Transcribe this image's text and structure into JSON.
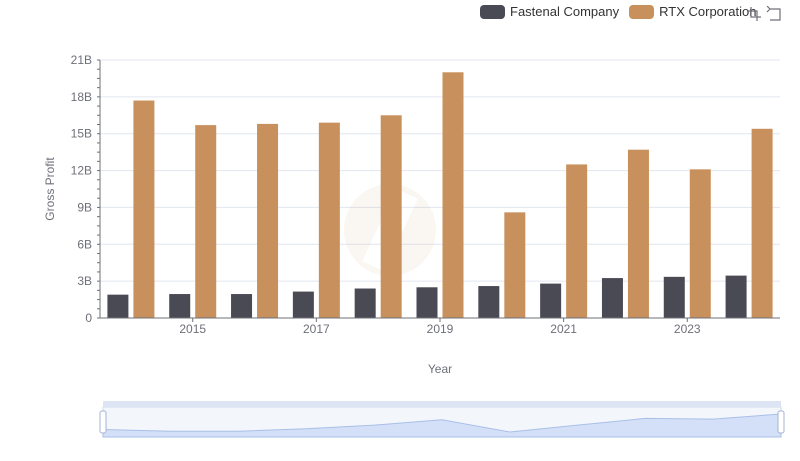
{
  "colors": {
    "fastenal": "#4a4a55",
    "rtx": "#c8905c",
    "grid": "#e0e6f1",
    "axis": "#6e7079"
  },
  "legend": {
    "items": [
      {
        "label": "Fastenal Company",
        "color": "#4a4a55"
      },
      {
        "label": "RTX Corporation",
        "color": "#c8905c"
      }
    ]
  },
  "toolbox": {
    "icons": [
      "zoom-icon",
      "restore-icon"
    ]
  },
  "chart_data": {
    "type": "bar",
    "title": "",
    "xlabel": "Year",
    "ylabel": "Gross Profit",
    "categories": [
      "2014",
      "2015",
      "2016",
      "2017",
      "2018",
      "2019",
      "2020",
      "2021",
      "2022",
      "2023",
      "2024"
    ],
    "x_tick_labels": [
      "2015",
      "2017",
      "2019",
      "2021",
      "2023"
    ],
    "y_tick_labels": [
      "0",
      "3B",
      "6B",
      "9B",
      "12B",
      "15B",
      "18B",
      "21B"
    ],
    "ylim": [
      0,
      21
    ],
    "y_unit": "billions",
    "grid": true,
    "legend_position": "top-right",
    "series": [
      {
        "name": "Fastenal Company",
        "values": [
          1.9,
          1.95,
          1.95,
          2.15,
          2.4,
          2.5,
          2.6,
          2.8,
          3.25,
          3.35,
          3.45
        ]
      },
      {
        "name": "RTX Corporation",
        "values": [
          17.7,
          15.7,
          15.8,
          15.9,
          16.5,
          20.0,
          8.6,
          12.5,
          13.7,
          12.1,
          15.4
        ]
      }
    ]
  }
}
